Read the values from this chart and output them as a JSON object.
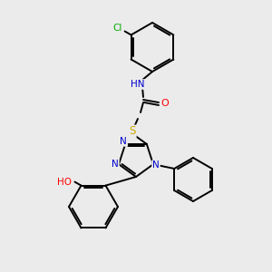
{
  "bg_color": "#ebebeb",
  "atom_colors": {
    "C": "#000000",
    "N": "#0000cc",
    "O": "#ff0000",
    "S": "#ccaa00",
    "Cl": "#00aa00",
    "H": "#000000"
  },
  "bond_color": "#000000",
  "line_width": 1.4,
  "figsize": [
    3.0,
    3.0
  ],
  "dpi": 100
}
